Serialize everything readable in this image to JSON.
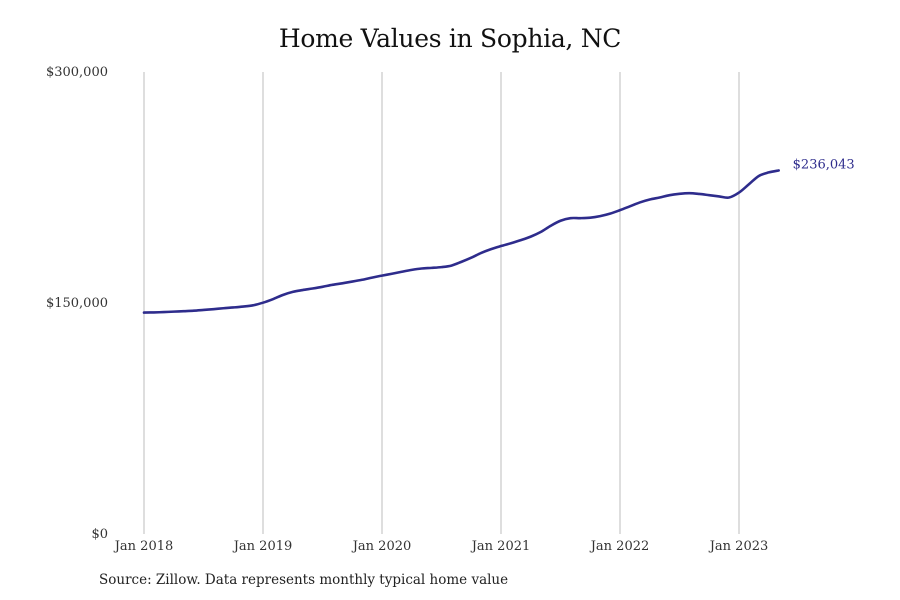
{
  "chart_data": {
    "type": "line",
    "title": "Home Values in Sophia, NC",
    "xlabel": "",
    "ylabel": "",
    "ylim": [
      0,
      300000
    ],
    "y_ticks": [
      {
        "value": 0,
        "label": "$0"
      },
      {
        "value": 150000,
        "label": "$150,000"
      },
      {
        "value": 300000,
        "label": "$300,000"
      }
    ],
    "x_ticks": [
      {
        "value": "2018-01",
        "label": "Jan 2018"
      },
      {
        "value": "2019-01",
        "label": "Jan 2019"
      },
      {
        "value": "2020-01",
        "label": "Jan 2020"
      },
      {
        "value": "2021-01",
        "label": "Jan 2021"
      },
      {
        "value": "2022-01",
        "label": "Jan 2022"
      },
      {
        "value": "2023-01",
        "label": "Jan 2023"
      }
    ],
    "grid": "vertical",
    "series": [
      {
        "x": [
          "2018-01",
          "2018-02",
          "2018-03",
          "2018-04",
          "2018-05",
          "2018-06",
          "2018-07",
          "2018-08",
          "2018-09",
          "2018-10",
          "2018-11",
          "2018-12",
          "2019-01",
          "2019-02",
          "2019-03",
          "2019-04",
          "2019-05",
          "2019-06",
          "2019-07",
          "2019-08",
          "2019-09",
          "2019-10",
          "2019-11",
          "2019-12",
          "2020-01",
          "2020-02",
          "2020-03",
          "2020-04",
          "2020-05",
          "2020-06",
          "2020-07",
          "2020-08",
          "2020-09",
          "2020-10",
          "2020-11",
          "2020-12",
          "2021-01",
          "2021-02",
          "2021-03",
          "2021-04",
          "2021-05",
          "2021-06",
          "2021-07",
          "2021-08",
          "2021-09",
          "2021-10",
          "2021-11",
          "2021-12",
          "2022-01",
          "2022-02",
          "2022-03",
          "2022-04",
          "2022-05",
          "2022-06",
          "2022-07",
          "2022-08",
          "2022-09",
          "2022-10",
          "2022-11",
          "2022-12",
          "2023-01",
          "2023-02",
          "2023-03",
          "2023-04",
          "2023-05"
        ],
        "values": [
          143800,
          143900,
          144100,
          144400,
          144700,
          145000,
          145500,
          146000,
          146600,
          147100,
          147700,
          148500,
          150200,
          152500,
          155200,
          157200,
          158400,
          159400,
          160500,
          161800,
          162800,
          163900,
          165100,
          166500,
          167800,
          169000,
          170300,
          171500,
          172400,
          172800,
          173300,
          174300,
          176700,
          179400,
          182500,
          185000,
          187000,
          188800,
          190800,
          193100,
          196100,
          200100,
          203400,
          205100,
          205100,
          205400,
          206400,
          208000,
          210300,
          212800,
          215300,
          217200,
          218500,
          220000,
          220900,
          221300,
          220800,
          220000,
          219200,
          218500,
          221700,
          227100,
          232500,
          234800,
          236043
        ],
        "color": "#2e2c8c"
      }
    ],
    "end_label": "$236,043",
    "source_note": "Source: Zillow. Data represents monthly typical home value"
  }
}
